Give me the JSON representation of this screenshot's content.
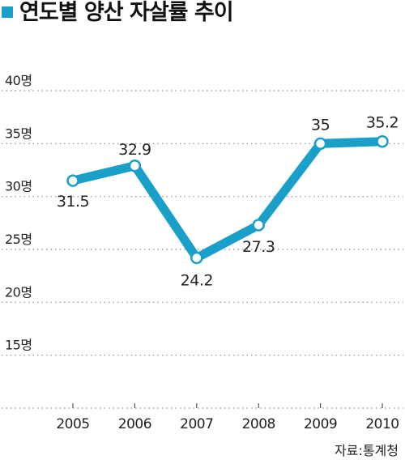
{
  "colors": {
    "accent": "#1aa0c8",
    "grid": "#888888",
    "text": "#222222"
  },
  "chart_data": {
    "type": "line",
    "title": "연도별 양산 자살률 추이",
    "xlabel": "",
    "ylabel": "",
    "categories": [
      "2005",
      "2006",
      "2007",
      "2008",
      "2009",
      "2010"
    ],
    "series": [
      {
        "values": [
          31.5,
          32.9,
          24.2,
          27.3,
          35,
          35.2
        ],
        "labels": [
          "31.5",
          "32.9",
          "24.2",
          "27.3",
          "35",
          "35.2"
        ]
      }
    ],
    "yticks": [
      {
        "value": 40,
        "label": "40명"
      },
      {
        "value": 35,
        "label": "35명"
      },
      {
        "value": 30,
        "label": "30명"
      },
      {
        "value": 25,
        "label": "25명"
      },
      {
        "value": 20,
        "label": "20명"
      },
      {
        "value": 15,
        "label": "15명"
      }
    ],
    "ylim": [
      10,
      40
    ],
    "grid": true,
    "legend": "none"
  },
  "source": "자료:통계청"
}
